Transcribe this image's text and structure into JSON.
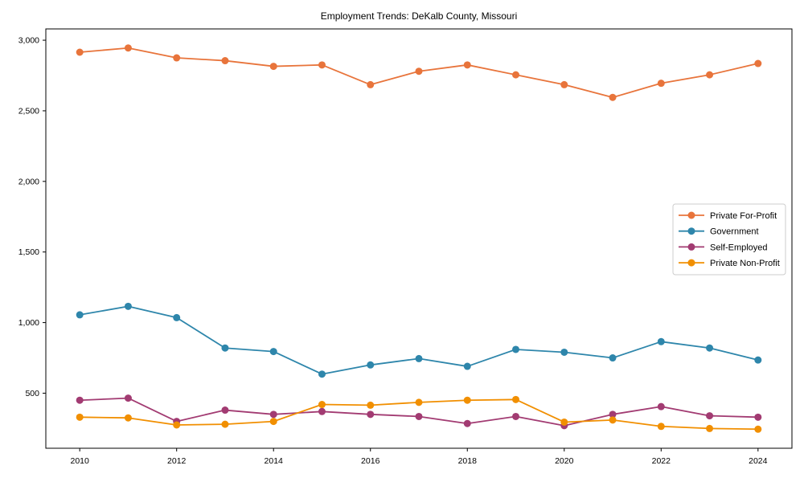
{
  "title": "Employment Trends: DeKalb County, Missouri",
  "chart_data": {
    "type": "line",
    "x": [
      2010,
      2011,
      2012,
      2013,
      2014,
      2015,
      2016,
      2017,
      2018,
      2019,
      2020,
      2021,
      2022,
      2023,
      2024
    ],
    "series": [
      {
        "name": "Private For-Profit",
        "color": "#E8743B",
        "values": [
          2915,
          2945,
          2875,
          2855,
          2815,
          2825,
          2685,
          2780,
          2825,
          2755,
          2685,
          2595,
          2695,
          2755,
          2835
        ]
      },
      {
        "name": "Government",
        "color": "#2E86AB",
        "values": [
          1055,
          1115,
          1035,
          820,
          795,
          635,
          700,
          745,
          690,
          810,
          790,
          750,
          865,
          820,
          735
        ]
      },
      {
        "name": "Self-Employed",
        "color": "#A23B72",
        "values": [
          450,
          465,
          300,
          380,
          350,
          370,
          350,
          335,
          285,
          335,
          270,
          350,
          405,
          340,
          330
        ]
      },
      {
        "name": "Private Non-Profit",
        "color": "#F18F01",
        "values": [
          330,
          325,
          275,
          280,
          300,
          420,
          415,
          435,
          450,
          455,
          295,
          310,
          265,
          250,
          245
        ]
      }
    ],
    "xticks": [
      2010,
      2012,
      2014,
      2016,
      2018,
      2020,
      2022,
      2024
    ],
    "yticks": [
      500,
      1000,
      1500,
      2000,
      2500,
      3000
    ],
    "xlim": [
      2009.3,
      2024.7
    ],
    "ylim": [
      110,
      3080
    ],
    "grid": false,
    "legend_position": "center-right",
    "xlabel": "",
    "ylabel": ""
  }
}
